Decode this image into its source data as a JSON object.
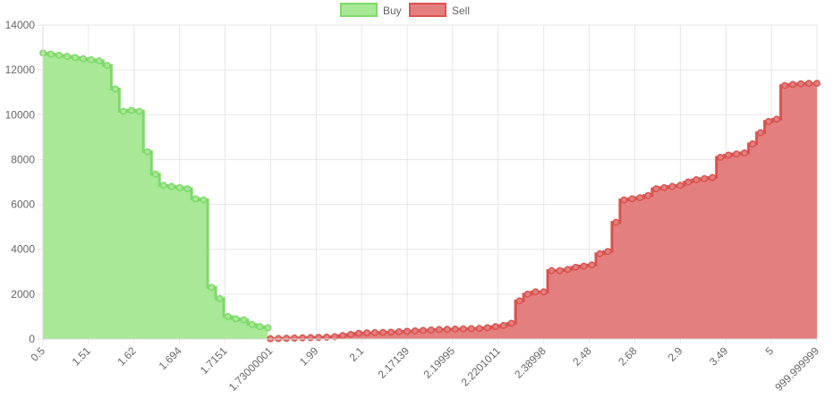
{
  "colors": {
    "buy_fill": "#a8e896",
    "buy_line": "#7ed96a",
    "sell_fill": "#e47f7f",
    "sell_line": "#d9534f",
    "grid": "#e6e6e6",
    "text": "#666666"
  },
  "chart_data": {
    "type": "area",
    "title": "",
    "xlabel": "",
    "ylabel": "",
    "legend_position": "top-center",
    "grid": true,
    "ylim": [
      0,
      14000
    ],
    "y_ticks": [
      "0",
      "2000",
      "4000",
      "6000",
      "8000",
      "10000",
      "12000",
      "14000"
    ],
    "x_tick_labels": [
      "0.5",
      "1.51",
      "1.62",
      "1.694",
      "1.7151",
      "1.73000001",
      "1.99",
      "2.1",
      "2.17139",
      "2.19995",
      "2.2201011",
      "2.38998",
      "2.48",
      "2.68",
      "2.9",
      "3.49",
      "5",
      "999.999999"
    ],
    "series": [
      {
        "name": "Buy",
        "step": true,
        "values": [
          12750,
          12700,
          12650,
          12600,
          12550,
          12500,
          12450,
          12400,
          12200,
          11150,
          10150,
          10200,
          10150,
          8350,
          7350,
          6850,
          6800,
          6750,
          6700,
          6250,
          6200,
          2300,
          1800,
          1000,
          900,
          850,
          650,
          550,
          500
        ]
      },
      {
        "name": "Sell",
        "step": true,
        "values": [
          10,
          20,
          30,
          40,
          50,
          60,
          70,
          80,
          100,
          150,
          200,
          250,
          270,
          280,
          290,
          300,
          320,
          340,
          360,
          380,
          400,
          420,
          430,
          440,
          450,
          460,
          470,
          500,
          550,
          600,
          700,
          1700,
          2000,
          2100,
          2100,
          3050,
          3050,
          3100,
          3200,
          3250,
          3300,
          3800,
          3900,
          5200,
          6200,
          6250,
          6300,
          6400,
          6700,
          6750,
          6800,
          6850,
          7000,
          7100,
          7150,
          7200,
          8100,
          8200,
          8250,
          8300,
          8700,
          9200,
          9700,
          9800,
          11300,
          11350,
          11380,
          11400,
          11400
        ]
      }
    ]
  }
}
